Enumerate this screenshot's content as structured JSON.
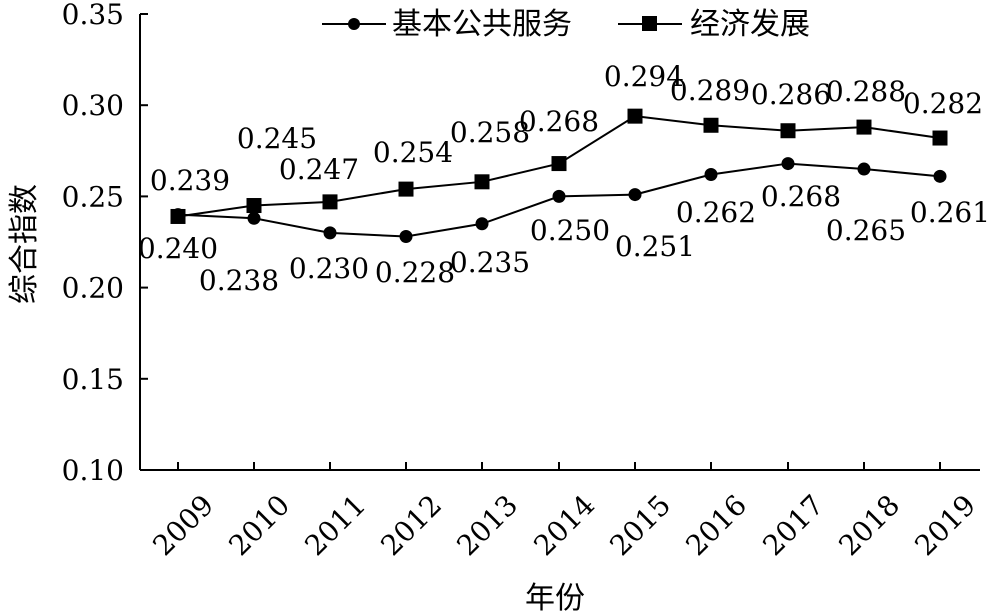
{
  "chart_data": {
    "type": "line",
    "title": "",
    "xlabel": "年份",
    "ylabel": "综合指数",
    "categories": [
      "2009",
      "2010",
      "2011",
      "2012",
      "2013",
      "2014",
      "2015",
      "2016",
      "2017",
      "2018",
      "2019"
    ],
    "ylim": [
      0.1,
      0.35
    ],
    "yticks": [
      "0.10",
      "0.15",
      "0.20",
      "0.25",
      "0.30",
      "0.35"
    ],
    "grid": false,
    "legend_position": "top",
    "series": [
      {
        "name": "基本公共服务",
        "marker": "circle",
        "values": [
          0.24,
          0.238,
          0.23,
          0.228,
          0.235,
          0.25,
          0.251,
          0.262,
          0.268,
          0.265,
          0.261
        ],
        "labels": [
          "0.240",
          "0.238",
          "0.230",
          "0.228",
          "0.235",
          "0.250",
          "0.251",
          "0.262",
          "0.268",
          "0.265",
          "0.261"
        ]
      },
      {
        "name": "经济发展",
        "marker": "square",
        "values": [
          0.239,
          0.245,
          0.247,
          0.254,
          0.258,
          0.268,
          0.294,
          0.289,
          0.286,
          0.288,
          0.282
        ],
        "labels": [
          "0.239",
          "0.245",
          "0.247",
          "0.254",
          "0.258",
          "0.268",
          "0.294",
          "0.289",
          "0.286",
          "0.288",
          "0.282"
        ]
      }
    ],
    "colors": {
      "line": "#000000",
      "marker": "#000000"
    }
  }
}
